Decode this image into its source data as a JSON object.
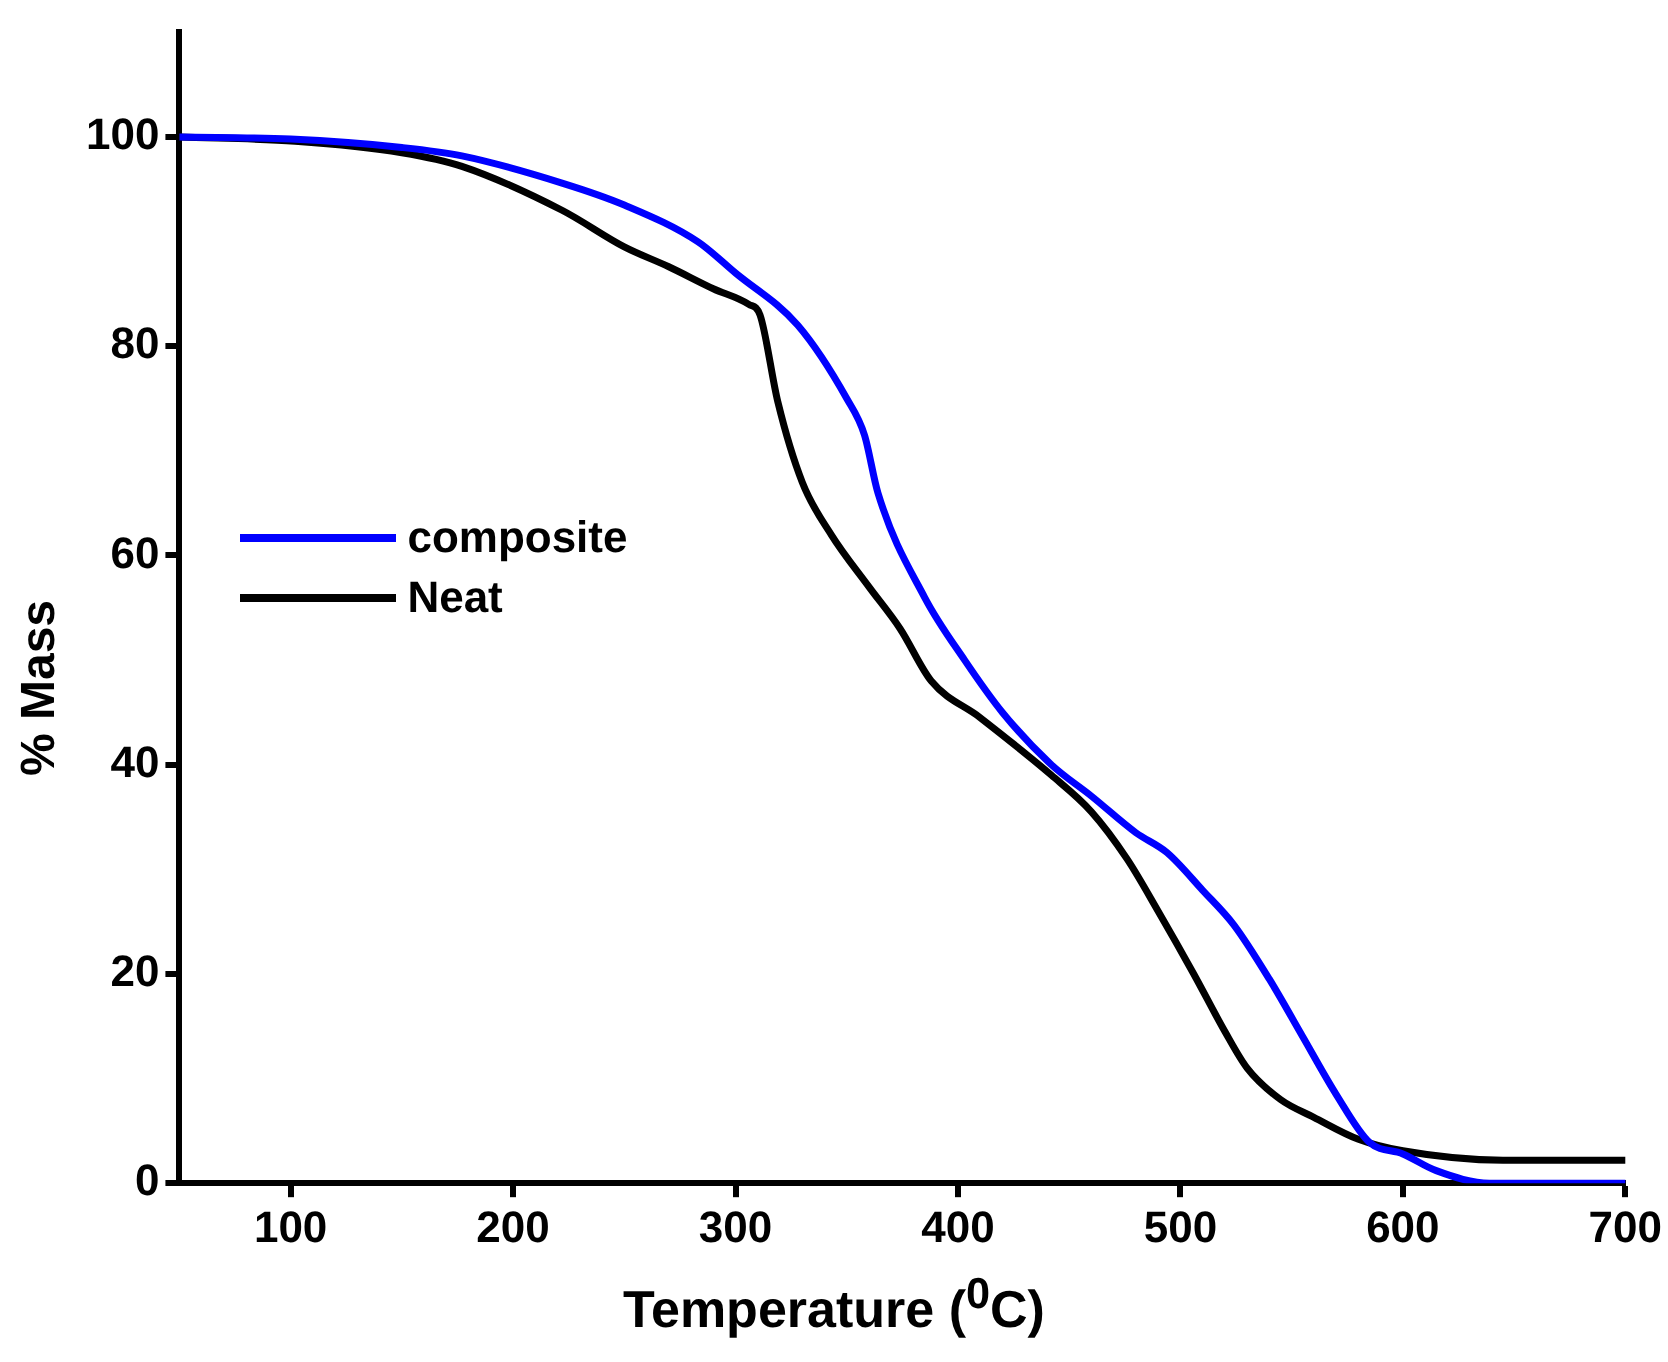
{
  "chart_data": {
    "type": "line",
    "xlabel": "Temperature ($^{0}$C)",
    "ylabel": "% Mass",
    "xlim": [
      50,
      700
    ],
    "ylim": [
      0,
      110
    ],
    "xticks": [
      100,
      200,
      300,
      400,
      500,
      600,
      700
    ],
    "yticks": [
      0,
      20,
      40,
      60,
      80,
      100
    ],
    "grid": false,
    "legend": "center left",
    "marker": "none",
    "line_style": "solid",
    "series": [
      {
        "name": "composite",
        "color": "#0000ff",
        "x": [
          50,
          100,
          150,
          177,
          222,
          250,
          283,
          300,
          328,
          350,
          358,
          364,
          385,
          403,
          420,
          442,
          460,
          480,
          494,
          510,
          524,
          540,
          555,
          570,
          585,
          600,
          615,
          639,
          700
        ],
        "values": [
          100,
          99.8,
          99,
          98.2,
          95.6,
          93.5,
          90,
          87,
          82,
          75,
          71.5,
          66,
          56,
          50,
          45,
          40,
          37,
          33.5,
          31.6,
          28,
          24.7,
          19.5,
          14,
          8.5,
          3.9,
          2.8,
          1.2,
          0,
          0
        ]
      },
      {
        "name": "Neat",
        "color": "#000000",
        "x": [
          50,
          102,
          150,
          177,
          222,
          250,
          270,
          290,
          306,
          311,
          319,
          330,
          343,
          360,
          374,
          388,
          410,
          442,
          460,
          476,
          490,
          506,
          520,
          530,
          545,
          560,
          580,
          600,
          645,
          700
        ],
        "values": [
          100,
          99.6,
          98.5,
          97.2,
          93,
          89.5,
          87.6,
          85.5,
          84,
          83,
          74.7,
          67,
          62,
          57,
          53,
          48,
          44.5,
          39,
          35.5,
          31,
          26,
          20,
          14.5,
          11,
          8,
          6.3,
          4.2,
          3.1,
          2.2,
          2.2
        ]
      }
    ]
  }
}
